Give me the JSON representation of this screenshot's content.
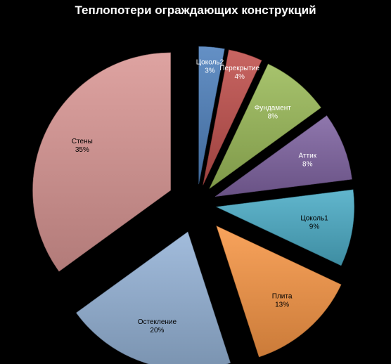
{
  "chart_data": {
    "type": "pie",
    "title": "Теплопотери ограждающих конструкций",
    "exploded": true,
    "gradient_fill": true,
    "background": "#000000",
    "legend": "none",
    "data_labels": "inside",
    "slices": [
      {
        "name": "Цоколь2",
        "value": 3,
        "label": "3%",
        "color": "#4f81bd",
        "label_color": "#ffffff"
      },
      {
        "name": "Перекрытие",
        "value": 4,
        "label": "4%",
        "color": "#c0504d",
        "label_color": "#ffffff"
      },
      {
        "name": "Фундамент",
        "value": 8,
        "label": "8%",
        "color": "#9bbb59",
        "label_color": "#ffffff"
      },
      {
        "name": "Аттик",
        "value": 8,
        "label": "8%",
        "color": "#8064a2",
        "label_color": "#ffffff"
      },
      {
        "name": "Цоколь1",
        "value": 9,
        "label": "9%",
        "color": "#4bacc6",
        "label_color": "#000000"
      },
      {
        "name": "Плита",
        "value": 13,
        "label": "13%",
        "color": "#f79646",
        "label_color": "#000000"
      },
      {
        "name": "Остекление",
        "value": 20,
        "label": "20%",
        "color": "#95b3d7",
        "label_color": "#000000"
      },
      {
        "name": "Стены",
        "value": 35,
        "label": "35%",
        "color": "#d99694",
        "label_color": "#000000"
      }
    ]
  }
}
